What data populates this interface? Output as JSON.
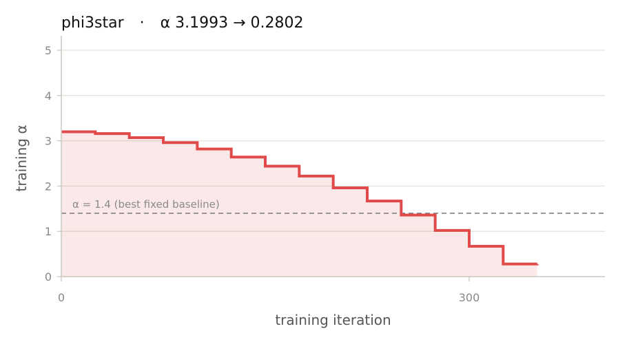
{
  "chart_data": {
    "type": "line",
    "step": "post",
    "title_left": "phi3star",
    "title_sep": "·",
    "title_right": "α 3.1993 → 0.2802",
    "xlabel": "training iteration",
    "ylabel": "training α",
    "xlim": [
      0,
      400
    ],
    "ylim": [
      0,
      5.3
    ],
    "xticks": [
      0,
      300
    ],
    "yticks": [
      0,
      1,
      2,
      3,
      4,
      5
    ],
    "grid": "horizontal",
    "fill_under": true,
    "series": [
      {
        "x": [
          0,
          25,
          50,
          75,
          100,
          125,
          150,
          175,
          200,
          225,
          250,
          275,
          300,
          325,
          350
        ],
        "y": [
          3.1993,
          3.16,
          3.07,
          2.96,
          2.82,
          2.64,
          2.44,
          2.22,
          1.96,
          1.67,
          1.36,
          1.02,
          0.67,
          0.28,
          0.2802
        ],
        "color": "#e04a4a"
      }
    ],
    "baseline": {
      "y": 1.4,
      "label": "α = 1.4 (best fixed baseline)",
      "color": "#888888"
    }
  }
}
